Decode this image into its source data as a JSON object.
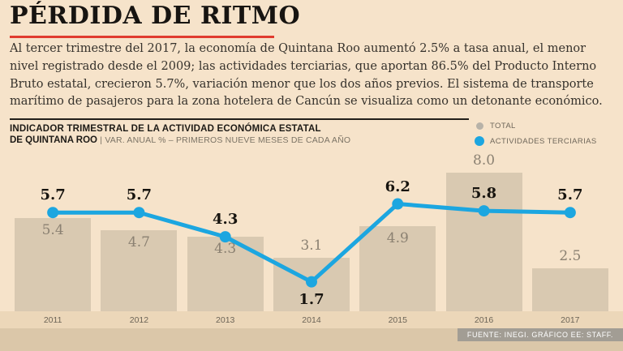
{
  "page": {
    "title": "PÉRDIDA DE RITMO",
    "intro": "Al tercer trimestre del 2017, la economía de Quintana Roo aumentó 2.5% a tasa anual, el menor nivel registrado desde el 2009; las actividades terciarias, que aportan 86.5% del Producto Interno Bruto estatal, crecieron 5.7%, variación menor que los dos años previos. El sistema de transporte marítimo de pasajeros para la zona hotelera de Cancún se visualiza como un detonante económico.",
    "source": "FUENTE: INEGI. GRÁFICO EE: STAFF."
  },
  "chart_header": {
    "line1": "INDICADOR TRIMESTRAL DE LA ACTIVIDAD ECONÓMICA ESTATAL",
    "line2_bold": "DE QUINTANA ROO",
    "separator": "|",
    "line2_rest": "VAR. ANUAL % – PRIMEROS NUEVE MESES DE CADA AÑO"
  },
  "colors": {
    "background": "#f6e3ca",
    "bar_fill": "#d9c9b1",
    "axis_band": "#ecd7b9",
    "bottom_strip": "#dbc7a9",
    "source_box": "#a29d94",
    "accent_red": "#e03b2f",
    "line_blue": "#1ca6e0",
    "legend_gray": "#b7b2a8",
    "value_gray": "#8b8172"
  },
  "chart_data": {
    "type": "bar",
    "title": "INDICADOR TRIMESTRAL DE LA ACTIVIDAD ECONÓMICA ESTATAL DE QUINTANA ROO",
    "subtitle": "VAR. ANUAL % – PRIMEROS NUEVE MESES DE CADA AÑO",
    "categories": [
      "2011",
      "2012",
      "2013",
      "2014",
      "2015",
      "2016",
      "2017"
    ],
    "series": [
      {
        "name": "TOTAL",
        "type": "bar",
        "values": [
          5.4,
          4.7,
          4.3,
          3.1,
          4.9,
          8.0,
          2.5
        ],
        "color": "#b7b2a8",
        "bar_color": "#d9c9b1"
      },
      {
        "name": "ACTIVIDADES TERCIARIAS",
        "type": "line",
        "values": [
          5.7,
          5.7,
          4.3,
          1.7,
          6.2,
          5.8,
          5.7
        ],
        "color": "#1ca6e0"
      }
    ],
    "ylim": [
      0,
      8.8
    ],
    "grid": false,
    "legend_position": "top-right",
    "xlabel": "",
    "ylabel": "VAR. ANUAL %"
  }
}
